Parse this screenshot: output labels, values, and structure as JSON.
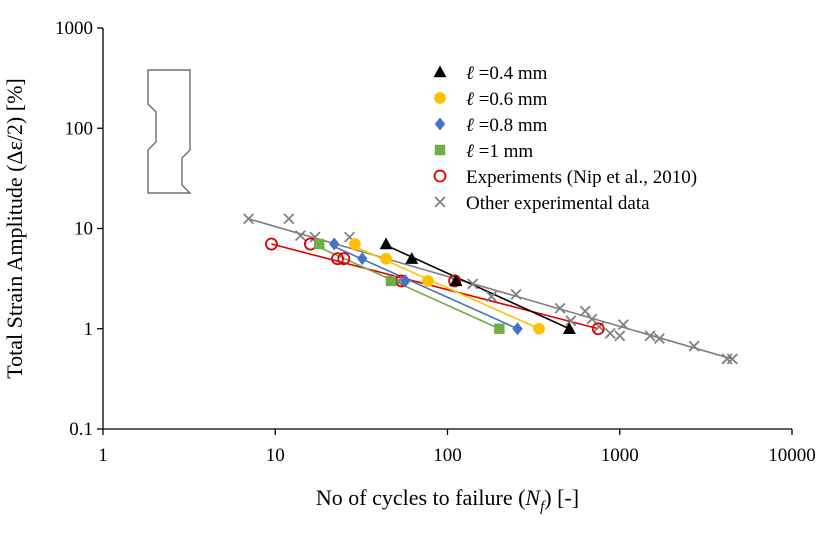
{
  "chart_data": {
    "type": "scatter",
    "xscale": "log",
    "yscale": "log",
    "xlim": [
      1,
      10000
    ],
    "ylim": [
      0.1,
      1000
    ],
    "xlabel": "No of cycles to failure (N_f) [-]",
    "ylabel": "Total Strain Amplitude  (Δε/2) [%]",
    "x_ticks": [
      1,
      10,
      100,
      1000,
      10000
    ],
    "x_tick_labels": [
      "1",
      "10",
      "100",
      "1000",
      "10000"
    ],
    "y_ticks": [
      0.1,
      1,
      10,
      100,
      1000
    ],
    "y_tick_labels": [
      "0.1",
      "1",
      "10",
      "100",
      "1000"
    ],
    "legend_position": "top-right",
    "series": [
      {
        "name": "ℓ =0.4 mm",
        "label_prefix": "ℓ",
        "label_suffix": " =0.4 mm",
        "marker": "triangle",
        "color": "#000000",
        "points": [
          [
            44,
            7
          ],
          [
            62,
            5
          ],
          [
            112,
            3
          ],
          [
            510,
            1
          ]
        ],
        "fit": [
          [
            44,
            6.8
          ],
          [
            510,
            1.0
          ]
        ]
      },
      {
        "name": "ℓ =0.6 mm",
        "label_prefix": "ℓ",
        "label_suffix": " =0.6 mm",
        "marker": "circle",
        "color": "#FFC000",
        "points": [
          [
            29,
            7
          ],
          [
            44,
            5
          ],
          [
            77,
            3
          ],
          [
            340,
            1
          ]
        ],
        "fit": [
          [
            29,
            6.6
          ],
          [
            340,
            1.0
          ]
        ]
      },
      {
        "name": "ℓ =0.8 mm",
        "label_prefix": "ℓ",
        "label_suffix": " =0.8 mm",
        "marker": "diamond",
        "color": "#4472C4",
        "points": [
          [
            22,
            7
          ],
          [
            32,
            5
          ],
          [
            57,
            3
          ],
          [
            255,
            1
          ]
        ],
        "fit": [
          [
            22,
            6.6
          ],
          [
            255,
            1.0
          ]
        ]
      },
      {
        "name": "ℓ =1 mm",
        "label_prefix": "ℓ",
        "label_suffix": " =1 mm",
        "marker": "square",
        "color": "#70AD47",
        "points": [
          [
            18,
            7
          ],
          [
            47,
            3
          ],
          [
            200,
            1
          ]
        ],
        "fit": [
          [
            18,
            6.5
          ],
          [
            200,
            1.0
          ]
        ]
      },
      {
        "name": "Experiments (Nip et al., 2010)",
        "label_prefix": "",
        "label_suffix": "Experiments (Nip et al., 2010)",
        "marker": "open-circle",
        "color": "#E00000",
        "points": [
          [
            9.5,
            7
          ],
          [
            16,
            7
          ],
          [
            23,
            5
          ],
          [
            25,
            5
          ],
          [
            54,
            3
          ],
          [
            110,
            3
          ],
          [
            750,
            1
          ]
        ],
        "fit": [
          [
            9.5,
            7.0
          ],
          [
            750,
            1.0
          ]
        ]
      },
      {
        "name": "Other experimental data",
        "label_prefix": "",
        "label_suffix": "Other experimental data",
        "marker": "x",
        "color": "#808080",
        "points": [
          [
            7,
            12.5
          ],
          [
            12,
            12.5
          ],
          [
            14,
            8.5
          ],
          [
            17,
            8.2
          ],
          [
            27,
            8.2
          ],
          [
            52,
            3
          ],
          [
            110,
            3
          ],
          [
            140,
            2.8
          ],
          [
            180,
            2.1
          ],
          [
            250,
            2.2
          ],
          [
            450,
            1.6
          ],
          [
            520,
            1.2
          ],
          [
            630,
            1.5
          ],
          [
            690,
            1.25
          ],
          [
            760,
            1.05
          ],
          [
            880,
            0.9
          ],
          [
            1000,
            0.85
          ],
          [
            1050,
            1.1
          ],
          [
            1500,
            0.85
          ],
          [
            1700,
            0.8
          ],
          [
            2700,
            0.67
          ],
          [
            4200,
            0.5
          ],
          [
            4500,
            0.5
          ]
        ],
        "fit": [
          [
            7,
            12.5
          ],
          [
            4500,
            0.5
          ]
        ]
      }
    ]
  }
}
